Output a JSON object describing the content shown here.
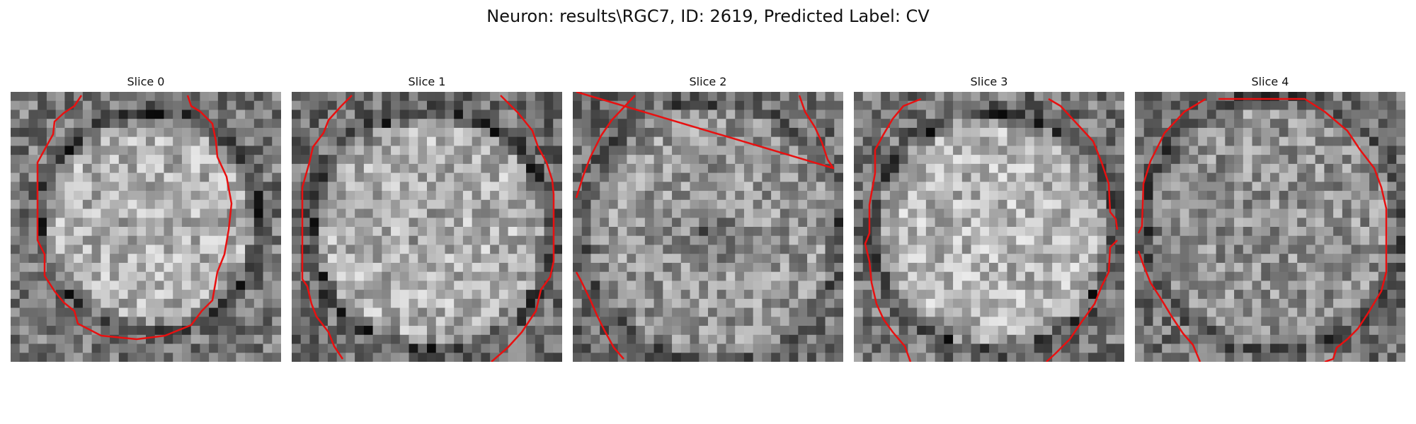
{
  "figure": {
    "title": "Neuron: results\\RGC7, ID: 2619, Predicted Label: CV"
  },
  "slices": [
    {
      "title": "Slice 0"
    },
    {
      "title": "Slice 1"
    },
    {
      "title": "Slice 2"
    },
    {
      "title": "Slice 3"
    },
    {
      "title": "Slice 4"
    }
  ],
  "colors": {
    "contour": "#e81010",
    "background": "#ffffff"
  }
}
